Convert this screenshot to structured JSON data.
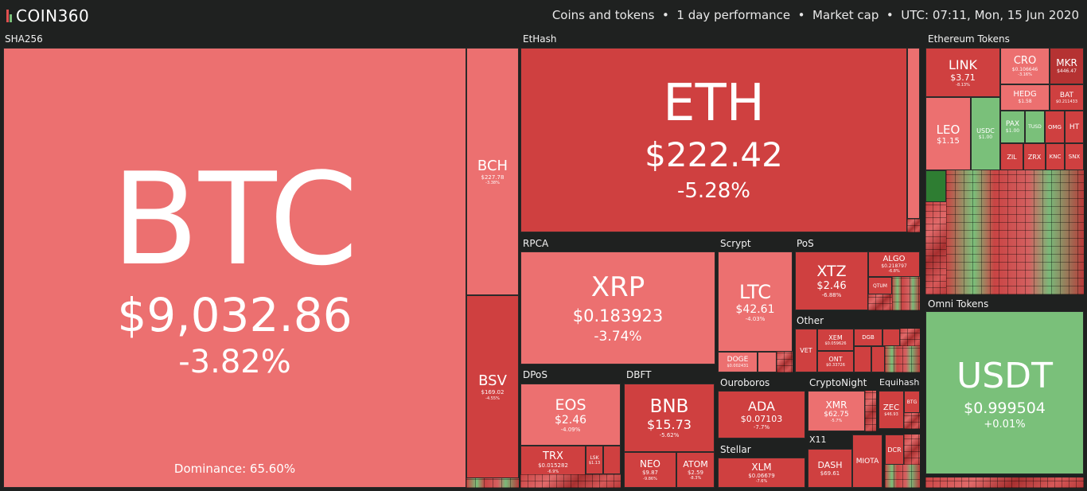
{
  "header": {
    "logo": "COIN360",
    "filters": "Coins and tokens  •  1 day performance  •  Market cap  •  UTC: 07:11, Mon, 15 Jun 2020"
  },
  "sectors": {
    "sha256": "SHA256",
    "ethash": "EtHash",
    "eth_tokens": "Ethereum Tokens",
    "rpca": "RPCA",
    "scrypt": "Scrypt",
    "pos": "PoS",
    "other": "Other",
    "dpos": "DPoS",
    "dbft": "DBFT",
    "ouroboros": "Ouroboros",
    "cryptonight": "CryptoNight",
    "equihash": "Equihash",
    "stellar": "Stellar",
    "x11": "X11",
    "omni": "Omni Tokens"
  },
  "coins": {
    "btc": {
      "sym": "BTC",
      "price": "$9,032.86",
      "change": "-3.82%"
    },
    "dominance": "Dominance: 65.60%",
    "bch": {
      "sym": "BCH",
      "price": "$227.78",
      "change": "-3.38%"
    },
    "bsv": {
      "sym": "BSV",
      "price": "$169.02",
      "change": "-4.55%"
    },
    "eth": {
      "sym": "ETH",
      "price": "$222.42",
      "change": "-5.28%"
    },
    "xrp": {
      "sym": "XRP",
      "price": "$0.183923",
      "change": "-3.74%"
    },
    "ltc": {
      "sym": "LTC",
      "price": "$42.61",
      "change": "-4.03%"
    },
    "doge": {
      "sym": "DOGE",
      "price": "$0.002431",
      "change": ""
    },
    "xtz": {
      "sym": "XTZ",
      "price": "$2.46",
      "change": "-6.88%"
    },
    "algo": {
      "sym": "ALGO",
      "price": "$0.218797",
      "change": "-6.8%"
    },
    "qtum": {
      "sym": "QTUM",
      "price": "",
      "change": ""
    },
    "vet": {
      "sym": "VET",
      "price": "",
      "change": ""
    },
    "xem": {
      "sym": "XEM",
      "price": "$0.059626",
      "change": "-4.8%"
    },
    "dgb": {
      "sym": "DGB",
      "price": "",
      "change": ""
    },
    "ont": {
      "sym": "ONT",
      "price": "$0.33726",
      "change": "-4.4%"
    },
    "eos": {
      "sym": "EOS",
      "price": "$2.46",
      "change": "-4.09%"
    },
    "trx": {
      "sym": "TRX",
      "price": "$0.015282",
      "change": "-6.9%"
    },
    "lsk": {
      "sym": "LSK",
      "price": "$1.13",
      "change": ""
    },
    "bnb": {
      "sym": "BNB",
      "price": "$15.73",
      "change": "-5.62%"
    },
    "neo": {
      "sym": "NEO",
      "price": "$9.87",
      "change": "-9.86%"
    },
    "atom": {
      "sym": "ATOM",
      "price": "$2.59",
      "change": "-8.3%"
    },
    "ada": {
      "sym": "ADA",
      "price": "$0.07103",
      "change": "-7.7%"
    },
    "xlm": {
      "sym": "XLM",
      "price": "$0.06679",
      "change": "-7.6%"
    },
    "xmr": {
      "sym": "XMR",
      "price": "$62.75",
      "change": "-5.7%"
    },
    "zec": {
      "sym": "ZEC",
      "price": "$46.93",
      "change": ""
    },
    "btg": {
      "sym": "BTG",
      "price": "",
      "change": ""
    },
    "dash": {
      "sym": "DASH",
      "price": "$69.61",
      "change": ""
    },
    "miota": {
      "sym": "MIOTA",
      "price": "",
      "change": ""
    },
    "dcr": {
      "sym": "DCR",
      "price": "",
      "change": ""
    },
    "link": {
      "sym": "LINK",
      "price": "$3.71",
      "change": "-8.13%"
    },
    "cro": {
      "sym": "CRO",
      "price": "$0.106646",
      "change": "-3.16%"
    },
    "mkr": {
      "sym": "MKR",
      "price": "$446.47",
      "change": ""
    },
    "hedg": {
      "sym": "HEDG",
      "price": "$1.58",
      "change": ""
    },
    "bat": {
      "sym": "BAT",
      "price": "$0.211433",
      "change": ""
    },
    "leo": {
      "sym": "LEO",
      "price": "$1.15",
      "change": ""
    },
    "usdc": {
      "sym": "USDC",
      "price": "$1.00",
      "change": ""
    },
    "pax": {
      "sym": "PAX",
      "price": "$1.00",
      "change": ""
    },
    "tusd": {
      "sym": "TUSD",
      "price": "",
      "change": ""
    },
    "omg": {
      "sym": "OMG",
      "price": "",
      "change": ""
    },
    "ht": {
      "sym": "HT",
      "price": "",
      "change": ""
    },
    "zil": {
      "sym": "ZIL",
      "price": "",
      "change": ""
    },
    "zrx": {
      "sym": "ZRX",
      "price": "",
      "change": ""
    },
    "knc": {
      "sym": "KNC",
      "price": "",
      "change": ""
    },
    "snx": {
      "sym": "SNX",
      "price": "",
      "change": ""
    },
    "usdt": {
      "sym": "USDT",
      "price": "$0.999504",
      "change": "+0.01%"
    }
  }
}
